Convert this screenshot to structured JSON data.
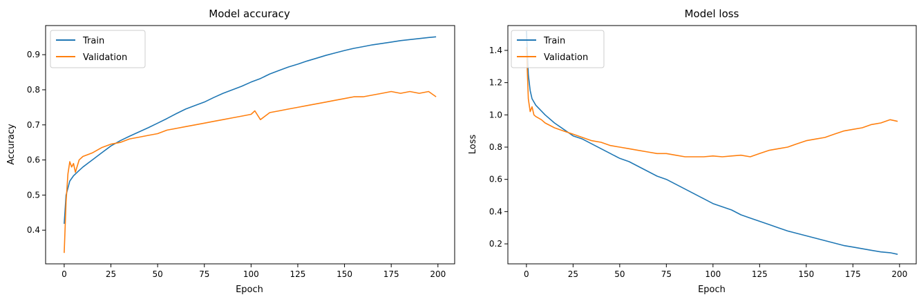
{
  "chart_data": [
    {
      "type": "line",
      "title": "Model accuracy",
      "xlabel": "Epoch",
      "ylabel": "Accuracy",
      "xlim": [
        -9.95,
        208.95
      ],
      "ylim": [
        0.304,
        0.983
      ],
      "xticks": [
        0,
        25,
        50,
        75,
        100,
        125,
        150,
        175,
        200
      ],
      "yticks": [
        0.4,
        0.5,
        0.6,
        0.7,
        0.8,
        0.9
      ],
      "ytick_labels": [
        "0.4",
        "0.5",
        "0.6",
        "0.7",
        "0.8",
        "0.9"
      ],
      "legend_placement": "upper-left",
      "grid": false,
      "series": [
        {
          "name": "Train",
          "color": "#1f77b4",
          "points": [
            [
              0,
              0.418
            ],
            [
              1,
              0.5
            ],
            [
              2,
              0.52
            ],
            [
              3,
              0.54
            ],
            [
              5,
              0.555
            ],
            [
              8,
              0.57
            ],
            [
              10,
              0.58
            ],
            [
              15,
              0.6
            ],
            [
              20,
              0.62
            ],
            [
              25,
              0.64
            ],
            [
              30,
              0.655
            ],
            [
              35,
              0.668
            ],
            [
              40,
              0.68
            ],
            [
              45,
              0.692
            ],
            [
              50,
              0.705
            ],
            [
              55,
              0.718
            ],
            [
              60,
              0.732
            ],
            [
              65,
              0.745
            ],
            [
              70,
              0.755
            ],
            [
              75,
              0.765
            ],
            [
              80,
              0.778
            ],
            [
              85,
              0.79
            ],
            [
              90,
              0.8
            ],
            [
              95,
              0.81
            ],
            [
              100,
              0.822
            ],
            [
              105,
              0.832
            ],
            [
              110,
              0.845
            ],
            [
              115,
              0.855
            ],
            [
              120,
              0.865
            ],
            [
              125,
              0.873
            ],
            [
              130,
              0.882
            ],
            [
              135,
              0.89
            ],
            [
              140,
              0.898
            ],
            [
              145,
              0.905
            ],
            [
              150,
              0.912
            ],
            [
              155,
              0.918
            ],
            [
              160,
              0.923
            ],
            [
              165,
              0.928
            ],
            [
              170,
              0.932
            ],
            [
              175,
              0.936
            ],
            [
              180,
              0.94
            ],
            [
              185,
              0.943
            ],
            [
              190,
              0.946
            ],
            [
              195,
              0.949
            ],
            [
              199,
              0.951
            ]
          ]
        },
        {
          "name": "Validation",
          "color": "#ff7f0e",
          "points": [
            [
              0,
              0.335
            ],
            [
              1,
              0.48
            ],
            [
              2,
              0.56
            ],
            [
              3,
              0.595
            ],
            [
              4,
              0.58
            ],
            [
              5,
              0.59
            ],
            [
              6,
              0.565
            ],
            [
              8,
              0.6
            ],
            [
              10,
              0.61
            ],
            [
              15,
              0.62
            ],
            [
              20,
              0.635
            ],
            [
              25,
              0.645
            ],
            [
              30,
              0.65
            ],
            [
              35,
              0.66
            ],
            [
              40,
              0.665
            ],
            [
              45,
              0.67
            ],
            [
              50,
              0.675
            ],
            [
              55,
              0.685
            ],
            [
              60,
              0.69
            ],
            [
              65,
              0.695
            ],
            [
              70,
              0.7
            ],
            [
              75,
              0.705
            ],
            [
              80,
              0.71
            ],
            [
              85,
              0.715
            ],
            [
              90,
              0.72
            ],
            [
              95,
              0.725
            ],
            [
              100,
              0.73
            ],
            [
              102,
              0.74
            ],
            [
              105,
              0.715
            ],
            [
              110,
              0.735
            ],
            [
              115,
              0.74
            ],
            [
              120,
              0.745
            ],
            [
              125,
              0.75
            ],
            [
              130,
              0.755
            ],
            [
              135,
              0.76
            ],
            [
              140,
              0.765
            ],
            [
              145,
              0.77
            ],
            [
              150,
              0.775
            ],
            [
              155,
              0.78
            ],
            [
              160,
              0.78
            ],
            [
              165,
              0.785
            ],
            [
              170,
              0.79
            ],
            [
              175,
              0.795
            ],
            [
              180,
              0.79
            ],
            [
              185,
              0.795
            ],
            [
              190,
              0.79
            ],
            [
              195,
              0.795
            ],
            [
              199,
              0.78
            ]
          ]
        }
      ]
    },
    {
      "type": "line",
      "title": "Model loss",
      "xlabel": "Epoch",
      "ylabel": "Loss",
      "xlim": [
        -9.95,
        208.95
      ],
      "ylim": [
        0.076,
        1.554
      ],
      "xticks": [
        0,
        25,
        50,
        75,
        100,
        125,
        150,
        175,
        200
      ],
      "yticks": [
        0.2,
        0.4,
        0.6,
        0.8,
        1.0,
        1.2,
        1.4
      ],
      "ytick_labels": [
        "0.2",
        "0.4",
        "0.6",
        "0.8",
        "1.0",
        "1.2",
        "1.4"
      ],
      "legend_placement": "upper-left",
      "grid": false,
      "series": [
        {
          "name": "Train",
          "color": "#1f77b4",
          "points": [
            [
              0,
              1.52
            ],
            [
              1,
              1.25
            ],
            [
              2,
              1.15
            ],
            [
              3,
              1.1
            ],
            [
              5,
              1.06
            ],
            [
              10,
              1.0
            ],
            [
              15,
              0.95
            ],
            [
              20,
              0.91
            ],
            [
              25,
              0.87
            ],
            [
              30,
              0.85
            ],
            [
              35,
              0.82
            ],
            [
              40,
              0.79
            ],
            [
              45,
              0.76
            ],
            [
              50,
              0.73
            ],
            [
              55,
              0.71
            ],
            [
              60,
              0.68
            ],
            [
              65,
              0.65
            ],
            [
              70,
              0.62
            ],
            [
              75,
              0.6
            ],
            [
              80,
              0.57
            ],
            [
              85,
              0.54
            ],
            [
              90,
              0.51
            ],
            [
              95,
              0.48
            ],
            [
              100,
              0.45
            ],
            [
              105,
              0.43
            ],
            [
              110,
              0.41
            ],
            [
              115,
              0.38
            ],
            [
              120,
              0.36
            ],
            [
              125,
              0.34
            ],
            [
              130,
              0.32
            ],
            [
              135,
              0.3
            ],
            [
              140,
              0.28
            ],
            [
              145,
              0.265
            ],
            [
              150,
              0.25
            ],
            [
              155,
              0.235
            ],
            [
              160,
              0.22
            ],
            [
              165,
              0.205
            ],
            [
              170,
              0.19
            ],
            [
              175,
              0.18
            ],
            [
              180,
              0.17
            ],
            [
              185,
              0.16
            ],
            [
              190,
              0.15
            ],
            [
              195,
              0.145
            ],
            [
              199,
              0.135
            ]
          ]
        },
        {
          "name": "Validation",
          "color": "#ff7f0e",
          "points": [
            [
              0,
              1.42
            ],
            [
              1,
              1.1
            ],
            [
              2,
              1.02
            ],
            [
              3,
              1.05
            ],
            [
              4,
              1.0
            ],
            [
              5,
              0.99
            ],
            [
              8,
              0.97
            ],
            [
              10,
              0.95
            ],
            [
              15,
              0.92
            ],
            [
              20,
              0.9
            ],
            [
              25,
              0.88
            ],
            [
              30,
              0.86
            ],
            [
              35,
              0.84
            ],
            [
              40,
              0.83
            ],
            [
              45,
              0.81
            ],
            [
              50,
              0.8
            ],
            [
              55,
              0.79
            ],
            [
              60,
              0.78
            ],
            [
              65,
              0.77
            ],
            [
              70,
              0.76
            ],
            [
              75,
              0.76
            ],
            [
              80,
              0.75
            ],
            [
              85,
              0.74
            ],
            [
              90,
              0.74
            ],
            [
              95,
              0.74
            ],
            [
              100,
              0.745
            ],
            [
              105,
              0.74
            ],
            [
              110,
              0.745
            ],
            [
              115,
              0.75
            ],
            [
              120,
              0.74
            ],
            [
              125,
              0.76
            ],
            [
              130,
              0.78
            ],
            [
              135,
              0.79
            ],
            [
              140,
              0.8
            ],
            [
              145,
              0.82
            ],
            [
              150,
              0.84
            ],
            [
              155,
              0.85
            ],
            [
              160,
              0.86
            ],
            [
              165,
              0.88
            ],
            [
              170,
              0.9
            ],
            [
              175,
              0.91
            ],
            [
              180,
              0.92
            ],
            [
              185,
              0.94
            ],
            [
              190,
              0.95
            ],
            [
              195,
              0.97
            ],
            [
              199,
              0.96
            ]
          ]
        }
      ]
    }
  ]
}
